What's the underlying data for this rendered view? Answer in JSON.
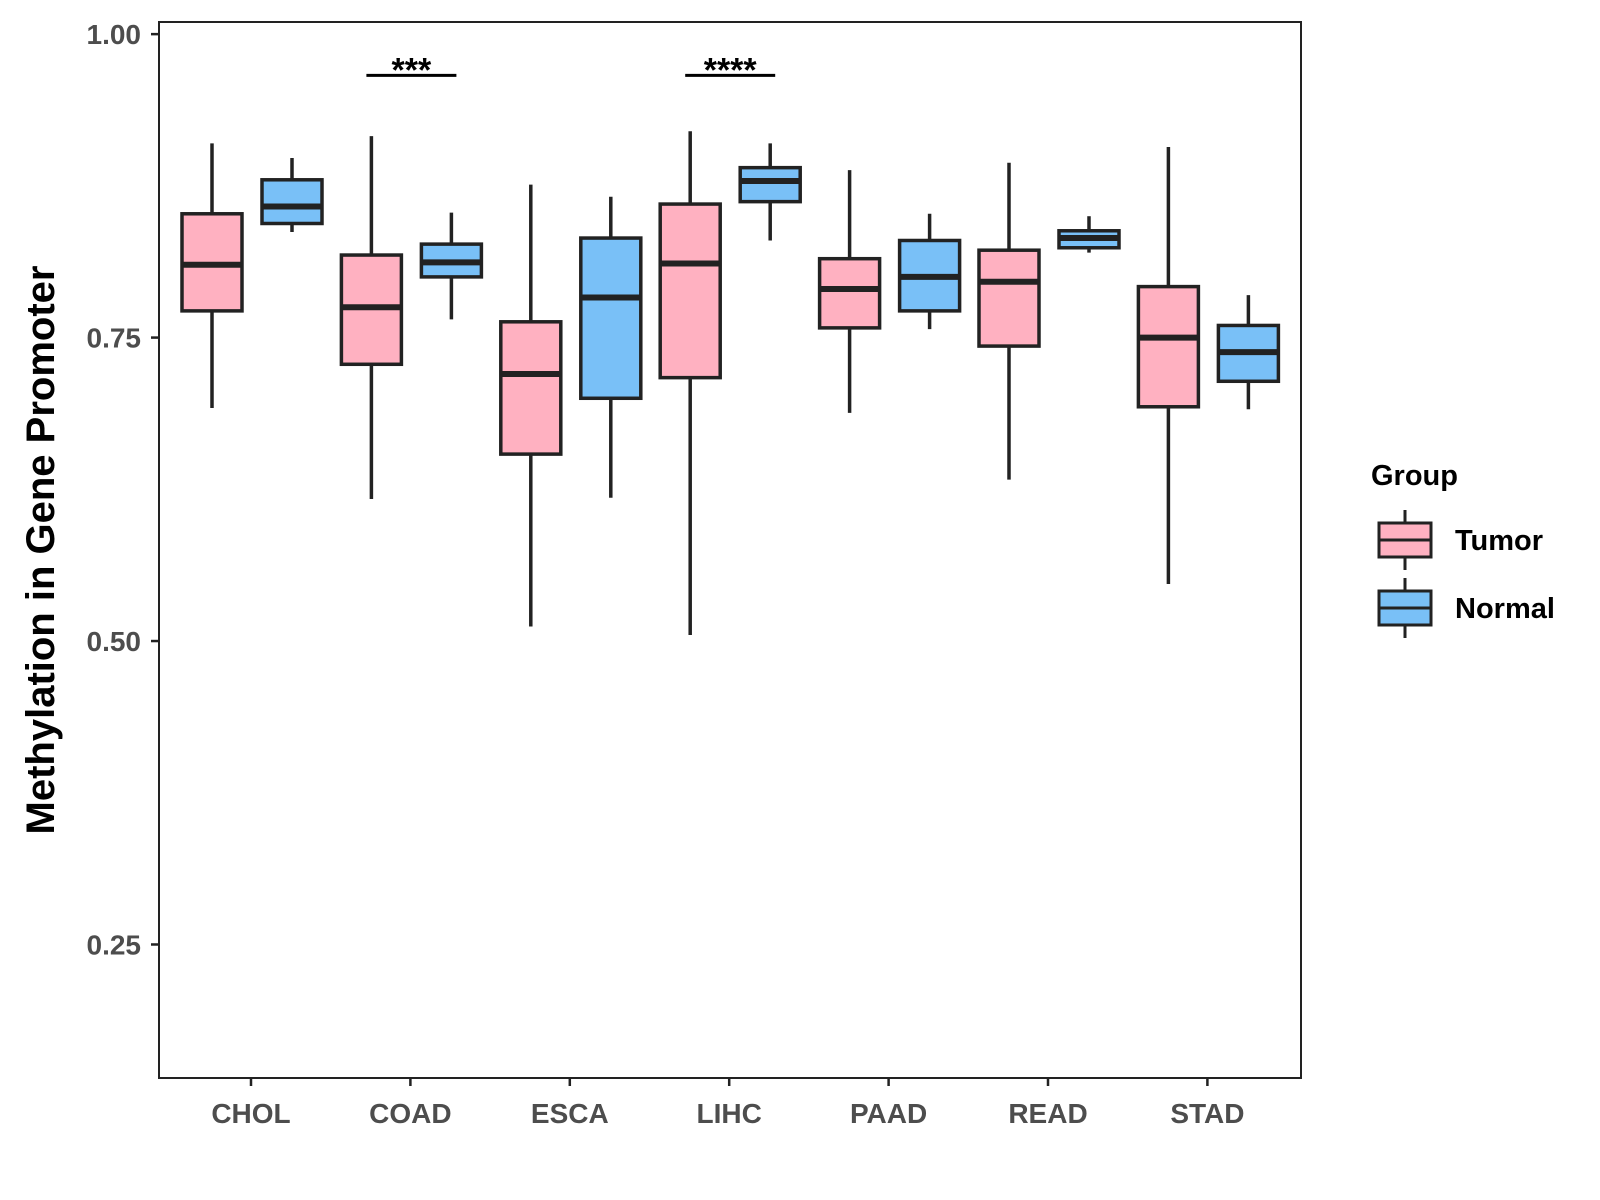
{
  "chart_data": {
    "type": "box",
    "ylabel": "Methylation in Gene Promoter",
    "xlabel": "",
    "ylim": [
      0.14,
      1.01
    ],
    "y_ticks": [
      {
        "value": 0.25,
        "label": "0.25"
      },
      {
        "value": 0.5,
        "label": "0.50"
      },
      {
        "value": 0.75,
        "label": "0.75"
      },
      {
        "value": 1.0,
        "label": "1.00"
      }
    ],
    "categories": [
      "CHOL",
      "COAD",
      "ESCA",
      "LIHC",
      "PAAD",
      "READ",
      "STAD"
    ],
    "legend": {
      "title": "Group",
      "position": "right",
      "entries": [
        {
          "name": "Tumor",
          "color": "#ffb1c1"
        },
        {
          "name": "Normal",
          "color": "#79c0f7"
        }
      ]
    },
    "series": [
      {
        "name": "Tumor",
        "color": "#ffb1c1",
        "boxes": [
          {
            "category": "CHOL",
            "min": 0.692,
            "q1": 0.772,
            "median": 0.81,
            "q3": 0.852,
            "max": 0.91
          },
          {
            "category": "COAD",
            "min": 0.617,
            "q1": 0.728,
            "median": 0.775,
            "q3": 0.818,
            "max": 0.916
          },
          {
            "category": "ESCA",
            "min": 0.512,
            "q1": 0.654,
            "median": 0.72,
            "q3": 0.763,
            "max": 0.876
          },
          {
            "category": "LIHC",
            "min": 0.505,
            "q1": 0.717,
            "median": 0.811,
            "q3": 0.86,
            "max": 0.92
          },
          {
            "category": "PAAD",
            "min": 0.688,
            "q1": 0.758,
            "median": 0.79,
            "q3": 0.815,
            "max": 0.888
          },
          {
            "category": "READ",
            "min": 0.633,
            "q1": 0.743,
            "median": 0.796,
            "q3": 0.822,
            "max": 0.894
          },
          {
            "category": "STAD",
            "min": 0.547,
            "q1": 0.693,
            "median": 0.75,
            "q3": 0.792,
            "max": 0.907
          }
        ]
      },
      {
        "name": "Normal",
        "color": "#79c0f7",
        "boxes": [
          {
            "category": "CHOL",
            "min": 0.837,
            "q1": 0.844,
            "median": 0.858,
            "q3": 0.88,
            "max": 0.898
          },
          {
            "category": "COAD",
            "min": 0.765,
            "q1": 0.8,
            "median": 0.812,
            "q3": 0.827,
            "max": 0.853
          },
          {
            "category": "ESCA",
            "min": 0.618,
            "q1": 0.7,
            "median": 0.783,
            "q3": 0.832,
            "max": 0.866
          },
          {
            "category": "LIHC",
            "min": 0.83,
            "q1": 0.862,
            "median": 0.879,
            "q3": 0.89,
            "max": 0.91
          },
          {
            "category": "PAAD",
            "min": 0.757,
            "q1": 0.772,
            "median": 0.8,
            "q3": 0.83,
            "max": 0.852
          },
          {
            "category": "READ",
            "min": 0.82,
            "q1": 0.824,
            "median": 0.832,
            "q3": 0.838,
            "max": 0.85
          },
          {
            "category": "STAD",
            "min": 0.691,
            "q1": 0.714,
            "median": 0.738,
            "q3": 0.76,
            "max": 0.785
          }
        ]
      }
    ],
    "annotations": [
      {
        "category": "COAD",
        "label": "***",
        "y": 0.966
      },
      {
        "category": "LIHC",
        "label": "****",
        "y": 0.966
      }
    ]
  }
}
